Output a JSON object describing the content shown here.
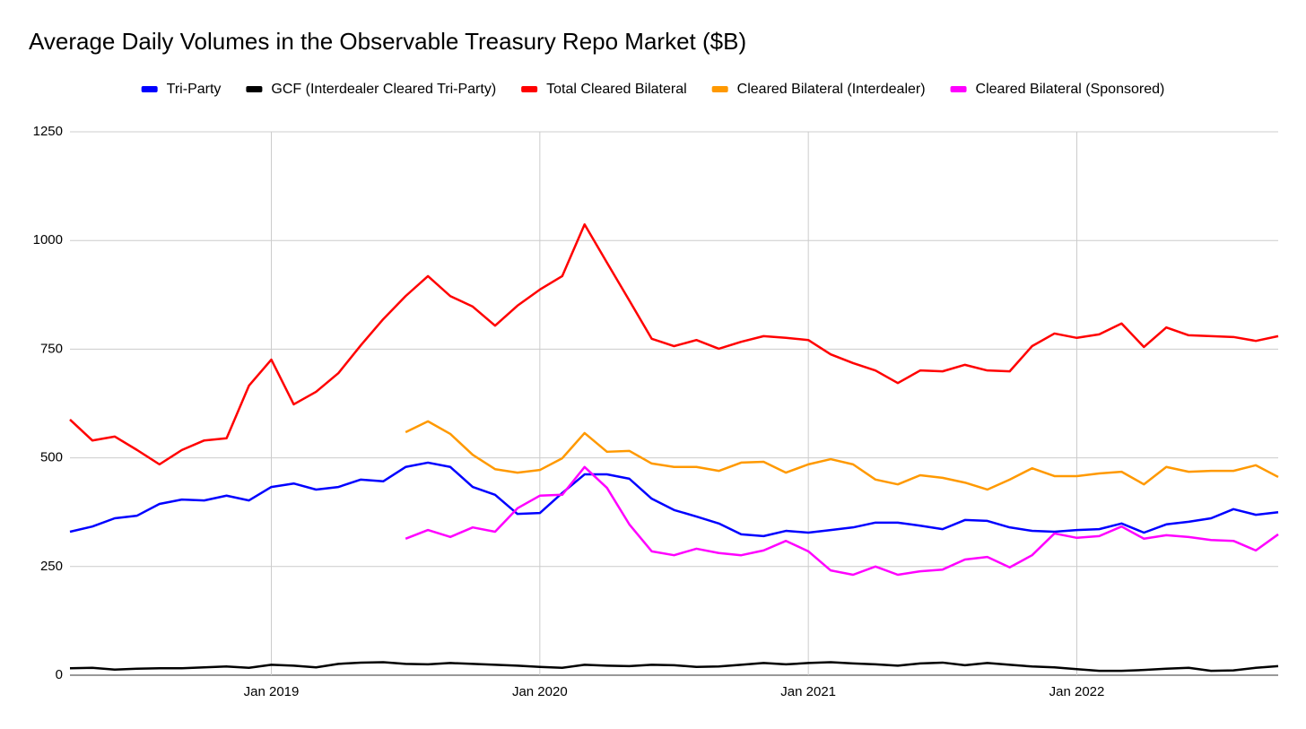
{
  "chart_data": {
    "type": "line",
    "title": "Average Daily Volumes in the Observable Treasury Repo Market ($B)",
    "categories": [
      null,
      null,
      null,
      null,
      null,
      null,
      null,
      null,
      null,
      "Jan 2019",
      null,
      null,
      null,
      null,
      null,
      null,
      null,
      null,
      null,
      null,
      null,
      "Jan 2020",
      null,
      null,
      null,
      null,
      null,
      null,
      null,
      null,
      null,
      null,
      null,
      "Jan 2021",
      null,
      null,
      null,
      null,
      null,
      null,
      null,
      null,
      null,
      null,
      null,
      "Jan 2022",
      null,
      null,
      null,
      null,
      null,
      null,
      null,
      null,
      null
    ],
    "ylim": [
      0,
      1250
    ],
    "yticks": [
      0,
      250,
      500,
      750,
      1000,
      1250
    ],
    "grid": true,
    "legend": "top",
    "series": [
      {
        "name": "Tri-Party",
        "color": "#0000ff",
        "values": [
          330,
          342,
          361,
          367,
          394,
          404,
          402,
          413,
          402,
          433,
          441,
          427,
          433,
          450,
          446,
          479,
          489,
          479,
          433,
          415,
          371,
          373,
          419,
          462,
          462,
          452,
          406,
          380,
          365,
          349,
          324,
          320,
          332,
          328,
          334,
          340,
          351,
          351,
          344,
          336,
          357,
          355,
          340,
          332,
          330,
          334,
          336,
          349,
          328,
          347,
          353,
          361,
          382,
          369,
          375
        ]
      },
      {
        "name": "GCF (Interdealer Cleared Tri-Party)",
        "color": "#000000",
        "values": [
          16,
          17,
          13,
          15,
          16,
          16,
          18,
          20,
          17,
          24,
          22,
          18,
          26,
          29,
          30,
          26,
          25,
          28,
          26,
          24,
          22,
          19,
          17,
          24,
          22,
          21,
          24,
          23,
          19,
          20,
          24,
          28,
          25,
          28,
          30,
          27,
          25,
          22,
          27,
          29,
          23,
          28,
          24,
          20,
          18,
          14,
          10,
          10,
          12,
          15,
          17,
          10,
          11,
          17,
          21
        ]
      },
      {
        "name": "Total Cleared Bilateral",
        "color": "#ff0000",
        "values": [
          588,
          540,
          549,
          518,
          485,
          518,
          540,
          545,
          666,
          726,
          623,
          652,
          695,
          759,
          819,
          872,
          918,
          872,
          848,
          804,
          850,
          887,
          918,
          1037,
          949,
          862,
          774,
          757,
          771,
          751,
          767,
          780,
          776,
          771,
          738,
          718,
          701,
          672,
          701,
          699,
          714,
          701,
          699,
          757,
          786,
          776,
          784,
          809,
          755,
          800,
          782,
          780,
          778,
          769,
          780
        ]
      },
      {
        "name": "Cleared Bilateral (Interdealer)",
        "color": "#ff9900",
        "values": [
          null,
          null,
          null,
          null,
          null,
          null,
          null,
          null,
          null,
          null,
          null,
          null,
          null,
          null,
          null,
          559,
          584,
          555,
          507,
          474,
          466,
          472,
          499,
          557,
          514,
          516,
          487,
          479,
          479,
          470,
          489,
          491,
          466,
          485,
          497,
          485,
          450,
          439,
          460,
          454,
          443,
          427,
          450,
          476,
          458,
          458,
          464,
          468,
          439,
          479,
          468,
          470,
          470,
          483,
          456
        ]
      },
      {
        "name": "Cleared Bilateral (Sponsored)",
        "color": "#ff00ff",
        "values": [
          null,
          null,
          null,
          null,
          null,
          null,
          null,
          null,
          null,
          null,
          null,
          null,
          null,
          null,
          null,
          314,
          334,
          318,
          340,
          330,
          384,
          413,
          415,
          479,
          431,
          347,
          285,
          276,
          291,
          281,
          276,
          287,
          309,
          285,
          241,
          231,
          250,
          231,
          239,
          243,
          266,
          272,
          248,
          276,
          326,
          316,
          320,
          342,
          314,
          322,
          318,
          311,
          309,
          287,
          324
        ]
      }
    ]
  }
}
